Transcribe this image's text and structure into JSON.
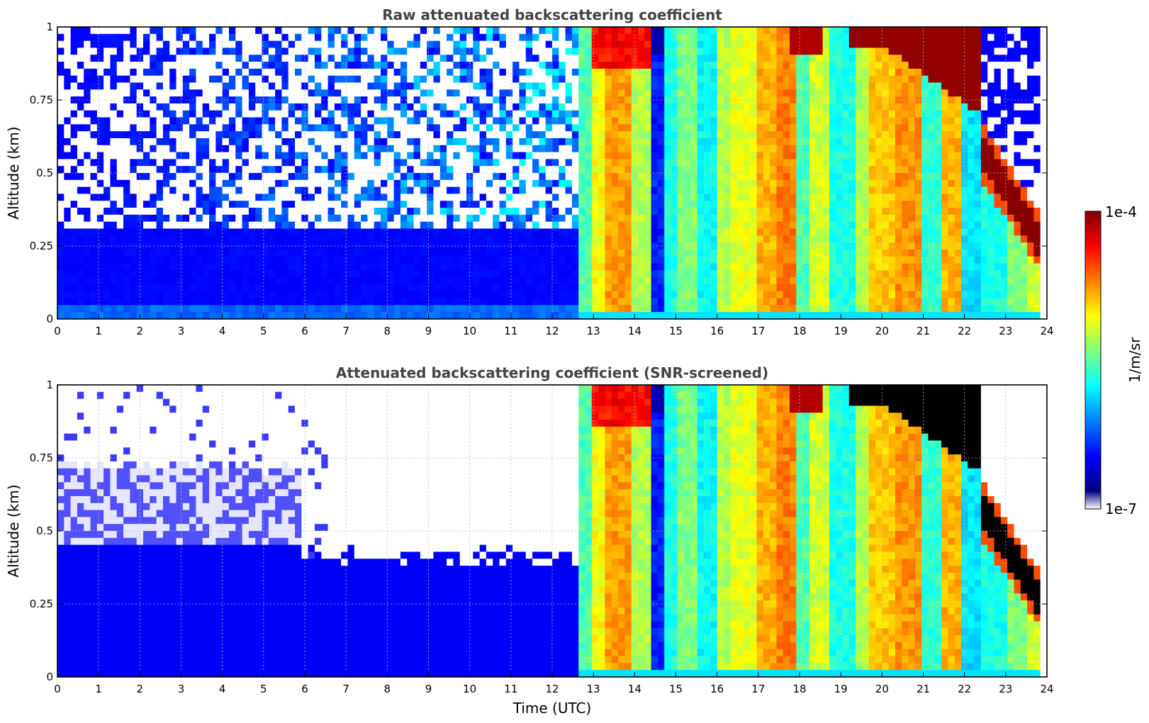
{
  "colors": {
    "jet": [
      "#00007f",
      "#0000ff",
      "#007fff",
      "#00ffff",
      "#7fff7f",
      "#ffff00",
      "#ff7f00",
      "#ff0000",
      "#7f0000"
    ],
    "screened_faint": "#e6e6ff",
    "saturated_screened": "#000000",
    "title": "#444444"
  },
  "colorbar": {
    "label": "1/m/sr",
    "max_label": "1e-4",
    "min_label": "1e-7",
    "scale": "log"
  },
  "chart_data": [
    {
      "type": "heatmap",
      "title": "Raw attenuated backscattering coefficient",
      "xlabel": "",
      "ylabel": "Altitude (km)",
      "xlim": [
        0,
        24
      ],
      "ylim": [
        0,
        1
      ],
      "xticks": [
        "0",
        "1",
        "2",
        "3",
        "4",
        "5",
        "6",
        "7",
        "8",
        "9",
        "10",
        "11",
        "12",
        "13",
        "14",
        "15",
        "16",
        "17",
        "18",
        "19",
        "20",
        "21",
        "22",
        "23",
        "24"
      ],
      "yticks": [
        "0",
        "0.25",
        "0.5",
        "0.75",
        "1"
      ],
      "grid": true,
      "colormap": "jet",
      "color_scale": "log",
      "clim": [
        "1e-7",
        "1e-4"
      ]
    },
    {
      "type": "heatmap",
      "title": "Attenuated backscattering coefficient (SNR-screened)",
      "xlabel": "Time (UTC)",
      "ylabel": "Altitude (km)",
      "xlim": [
        0,
        24
      ],
      "ylim": [
        0,
        1
      ],
      "xticks": [
        "0",
        "1",
        "2",
        "3",
        "4",
        "5",
        "6",
        "7",
        "8",
        "9",
        "10",
        "11",
        "12",
        "13",
        "14",
        "15",
        "16",
        "17",
        "18",
        "19",
        "20",
        "21",
        "22",
        "23",
        "24"
      ],
      "yticks": [
        "0",
        "0.25",
        "0.5",
        "0.75",
        "1"
      ],
      "grid": true,
      "colormap": "jet",
      "color_scale": "log",
      "clim": [
        "1e-7",
        "1e-4"
      ]
    }
  ]
}
